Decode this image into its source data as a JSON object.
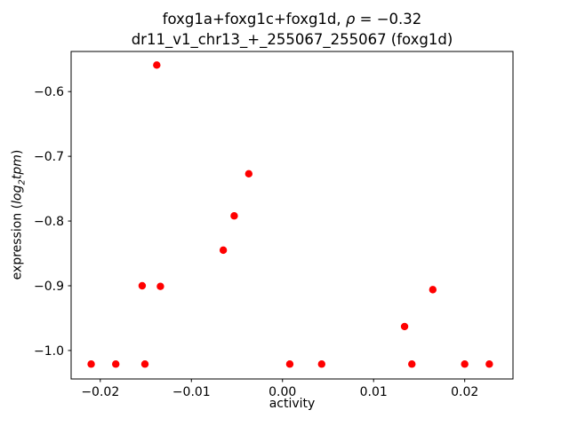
{
  "title_parts": {
    "prefix": "foxg1a+foxg1c+foxg1d, ",
    "rho": "ρ",
    "suffix": " = −0.32"
  },
  "ylabel_parts": {
    "prefix": "expression (",
    "log": "log",
    "sub": "2",
    "rest": "tpm",
    "suffix": ")"
  },
  "chart_data": {
    "type": "scatter",
    "title": "foxg1a+foxg1c+foxg1d, ρ = −0.32",
    "subtitle": "dr11_v1_chr13_+_255067_255067 (foxg1d)",
    "xlabel": "activity",
    "ylabel": "expression (log₂tpm)",
    "xlim": [
      -0.0232,
      0.0253
    ],
    "ylim": [
      -1.044,
      -0.538
    ],
    "grid": false,
    "legend": "none",
    "marker_color": "#ff0000",
    "xticks": {
      "values": [
        -0.02,
        -0.01,
        0.0,
        0.01,
        0.02
      ],
      "labels": [
        "−0.02",
        "−0.01",
        "0.00",
        "0.01",
        "0.02"
      ]
    },
    "yticks": {
      "values": [
        -0.6,
        -0.7,
        -0.8,
        -0.9,
        -1.0
      ],
      "labels": [
        "−0.6",
        "−0.7",
        "−0.8",
        "−0.9",
        "−1.0"
      ]
    },
    "points": [
      [
        -0.0138,
        -0.559
      ],
      [
        -0.0037,
        -0.727
      ],
      [
        -0.0053,
        -0.792
      ],
      [
        -0.0065,
        -0.845
      ],
      [
        -0.0154,
        -0.9
      ],
      [
        -0.0134,
        -0.901
      ],
      [
        0.0165,
        -0.906
      ],
      [
        0.0134,
        -0.963
      ],
      [
        -0.021,
        -1.021
      ],
      [
        -0.0183,
        -1.021
      ],
      [
        -0.0151,
        -1.021
      ],
      [
        0.0008,
        -1.021
      ],
      [
        0.0043,
        -1.021
      ],
      [
        0.0142,
        -1.021
      ],
      [
        0.02,
        -1.021
      ],
      [
        0.0227,
        -1.021
      ]
    ]
  }
}
